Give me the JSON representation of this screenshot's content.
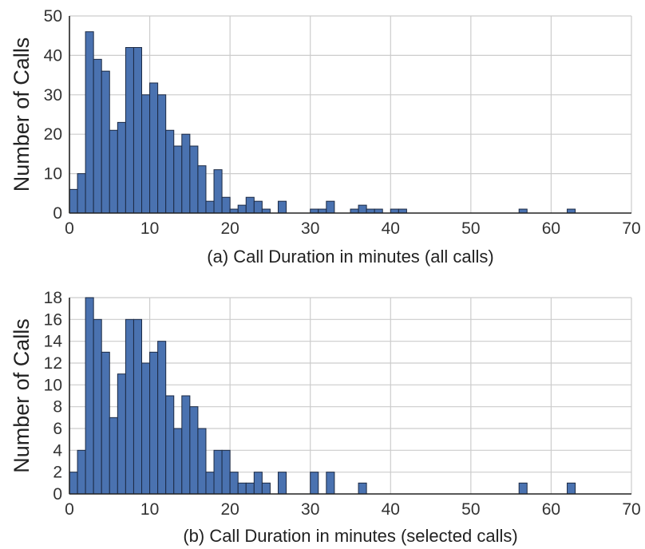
{
  "chart_data": [
    {
      "type": "bar",
      "panel": "a",
      "xlabel": "(a) Call Duration in minutes (all calls)",
      "ylabel": "Number of Calls",
      "xlim": [
        0,
        70
      ],
      "ylim": [
        0,
        50
      ],
      "bin_width": 1,
      "x_ticks": [
        0,
        10,
        20,
        30,
        40,
        50,
        60,
        70
      ],
      "y_ticks": [
        0,
        10,
        20,
        30,
        40,
        50
      ],
      "grid": true,
      "bar_color": "#4a72b0",
      "values": [
        6,
        10,
        46,
        39,
        36,
        21,
        23,
        42,
        42,
        30,
        33,
        30,
        21,
        17,
        20,
        17,
        12,
        3,
        11,
        4,
        1,
        2,
        4,
        3,
        1,
        0,
        3,
        0,
        0,
        0,
        1,
        1,
        3,
        0,
        0,
        1,
        2,
        1,
        1,
        0,
        1,
        1,
        0,
        0,
        0,
        0,
        0,
        0,
        0,
        0,
        0,
        0,
        0,
        0,
        0,
        0,
        1,
        0,
        0,
        0,
        0,
        0,
        1,
        0,
        0,
        0,
        0,
        0,
        0,
        0
      ]
    },
    {
      "type": "bar",
      "panel": "b",
      "xlabel": "(b) Call Duration in minutes (selected calls)",
      "ylabel": "Number of Calls",
      "xlim": [
        0,
        70
      ],
      "ylim": [
        0,
        18
      ],
      "bin_width": 1,
      "x_ticks": [
        0,
        10,
        20,
        30,
        40,
        50,
        60,
        70
      ],
      "y_ticks": [
        0,
        2,
        4,
        6,
        8,
        10,
        12,
        14,
        16,
        18
      ],
      "grid": true,
      "bar_color": "#4a72b0",
      "values": [
        2,
        4,
        18,
        16,
        13,
        7,
        11,
        16,
        16,
        12,
        13,
        14,
        9,
        6,
        9,
        8,
        6,
        2,
        4,
        4,
        2,
        1,
        1,
        2,
        1,
        0,
        2,
        0,
        0,
        0,
        2,
        0,
        2,
        0,
        0,
        0,
        1,
        0,
        0,
        0,
        0,
        0,
        0,
        0,
        0,
        0,
        0,
        0,
        0,
        0,
        0,
        0,
        0,
        0,
        0,
        0,
        1,
        0,
        0,
        0,
        0,
        0,
        1,
        0,
        0,
        0,
        0,
        0,
        0,
        0
      ]
    }
  ]
}
